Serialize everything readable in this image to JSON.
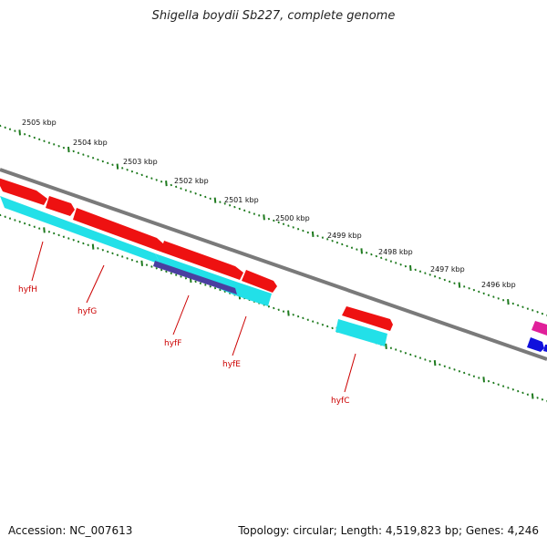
{
  "title": "Shigella boydii Sb227, complete genome",
  "footer": {
    "accession": "Accession: NC_007613",
    "topology": "Topology: circular; Length: 4,519,823 bp; Genes: 4,246"
  },
  "kbp_labels": [
    "2505 kbp",
    "2504 kbp",
    "2503 kbp",
    "2502 kbp",
    "2501 kbp",
    "2500 kbp",
    "2499 kbp",
    "2498 kbp",
    "2497 kbp",
    "2496 kbp"
  ],
  "gene_labels": [
    "hyfH",
    "hyfG",
    "hyfF",
    "hyfE",
    "hyfC"
  ],
  "colors": {
    "backbone": "#888888",
    "tick": "#1e7a1e",
    "forward_gene": "#ee1111",
    "reverse_gene": "#22e0e8",
    "operon": "#4a3fa0",
    "magenta": "#e0209a",
    "blue": "#1010dd",
    "label": "#cc0000"
  }
}
